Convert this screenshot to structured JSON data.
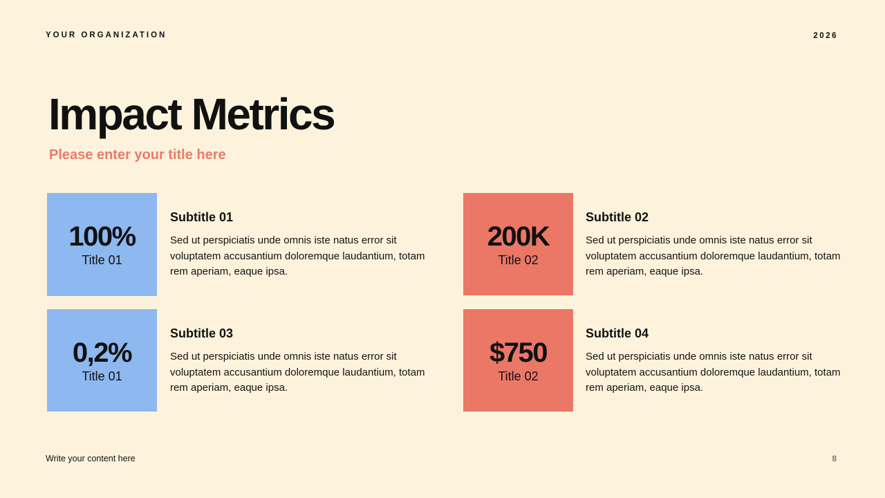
{
  "header": {
    "org": "YOUR ORGANIZATION",
    "year": "2026"
  },
  "title": "Impact Metrics",
  "subtitle": "Please enter your title here",
  "colors": {
    "background": "#fdf3dc",
    "blue": "#8db8f0",
    "red": "#eb7767",
    "accent_text": "#ec7a6a"
  },
  "metrics": [
    {
      "value": "100%",
      "label": "Title 01",
      "heading": "Subtitle 01",
      "body": "Sed ut perspiciatis unde omnis iste natus error sit voluptatem accusantium doloremque laudantium, totam rem aperiam, eaque ipsa."
    },
    {
      "value": "200K",
      "label": "Title 02",
      "heading": "Subtitle 02",
      "body": "Sed ut perspiciatis unde omnis iste natus error sit voluptatem accusantium doloremque laudantium, totam rem aperiam, eaque ipsa."
    },
    {
      "value": "0,2%",
      "label": "Title 01",
      "heading": "Subtitle 03",
      "body": "Sed ut perspiciatis unde omnis iste natus error sit voluptatem accusantium doloremque laudantium, totam rem aperiam, eaque ipsa."
    },
    {
      "value": "$750",
      "label": "Title 02",
      "heading": "Subtitle 04",
      "body": "Sed ut perspiciatis unde omnis iste natus error sit voluptatem accusantium doloremque laudantium, totam rem aperiam, eaque ipsa."
    }
  ],
  "footer": {
    "text": "Write your content here",
    "page": "8"
  }
}
